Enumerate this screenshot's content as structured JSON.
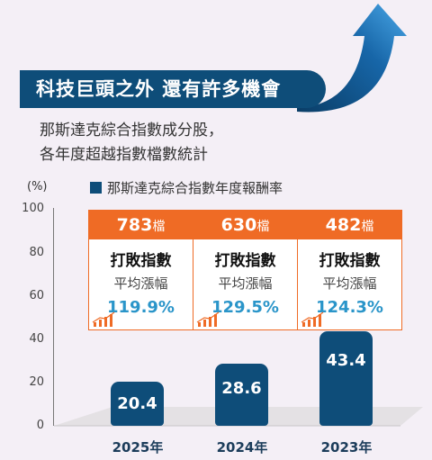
{
  "title": "科技巨頭之外  還有許多機會",
  "subtitle_lines": [
    "那斯達克綜合指數成分股，",
    "各年度超越指數檔數統計"
  ],
  "colors": {
    "bar": "#0e4d79",
    "callout": "#ef6b25",
    "percent": "#2a95c9",
    "banner": "#0e4d79"
  },
  "icons": {
    "callout_icon": "rising-bar-chart-icon",
    "header_graphic": "upward-arrow"
  },
  "chart_data": {
    "type": "bar",
    "unit_label": "(%)",
    "legend": [
      "那斯達克綜合指數年度報酬率"
    ],
    "ylim": [
      0,
      100
    ],
    "yticks": [
      "0",
      "20",
      "40",
      "60",
      "80",
      "100"
    ],
    "categories": [
      "2025年",
      "2024年",
      "2023年"
    ],
    "series": [
      {
        "name": "那斯達克綜合指數年度報酬率",
        "values": [
          20.4,
          28.6,
          43.4
        ],
        "value_labels": [
          "20.4",
          "28.6",
          "43.4"
        ]
      }
    ],
    "annotations": [
      {
        "count": "783",
        "unit": "檔",
        "label": "打敗指數",
        "sublabel": "平均漲幅",
        "value": "119.9%"
      },
      {
        "count": "630",
        "unit": "檔",
        "label": "打敗指數",
        "sublabel": "平均漲幅",
        "value": "129.5%"
      },
      {
        "count": "482",
        "unit": "檔",
        "label": "打敗指數",
        "sublabel": "平均漲幅",
        "value": "124.3%"
      }
    ]
  }
}
